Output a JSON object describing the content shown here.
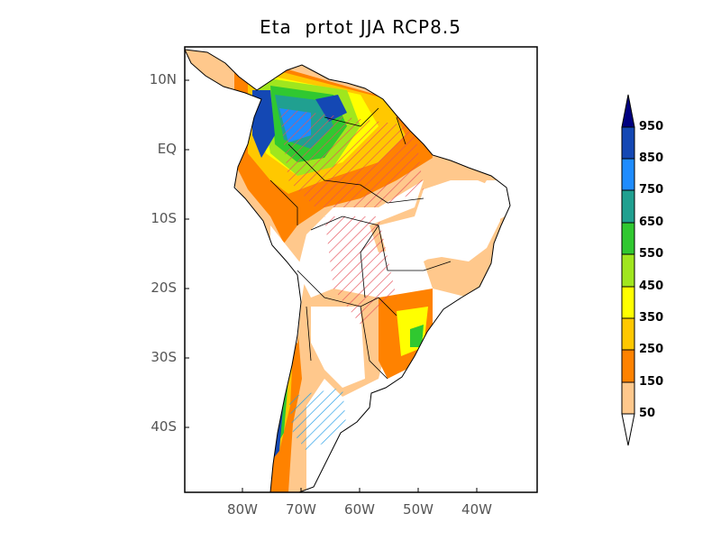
{
  "title": "Eta  prtot JJA RCP8.5",
  "map": {
    "lat_labels": [
      "10N",
      "EQ",
      "10S",
      "20S",
      "30S",
      "40S"
    ],
    "lon_labels": [
      "80W",
      "70W",
      "60W",
      "50W",
      "40W"
    ],
    "extent": {
      "lon": [
        -90,
        -30
      ],
      "lat": [
        -50,
        15
      ]
    }
  },
  "colorbar": {
    "levels": [
      "950",
      "850",
      "750",
      "650",
      "550",
      "450",
      "350",
      "250",
      "150",
      "50"
    ],
    "colors": [
      "#000080",
      "#1448b4",
      "#1e8cff",
      "#20a090",
      "#30c830",
      "#a0e61e",
      "#ffff00",
      "#ffc800",
      "#ff8200",
      "#ffc88c",
      "#ffffff"
    ]
  },
  "hatch_colors": {
    "positive": "#e6505a",
    "negative": "#1e9be6"
  }
}
